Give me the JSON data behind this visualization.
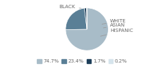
{
  "labels": [
    "BLACK",
    "WHITE",
    "ASIAN",
    "HISPANIC"
  ],
  "values": [
    74.7,
    23.4,
    1.7,
    0.2
  ],
  "colors": [
    "#a8bcc8",
    "#5a7f96",
    "#1e3f5a",
    "#d6e4ec"
  ],
  "legend_labels": [
    "74.7%",
    "23.4%",
    "1.7%",
    "0.2%"
  ],
  "legend_colors": [
    "#a8bcc8",
    "#5a7f96",
    "#1e3f5a",
    "#d6e4ec"
  ],
  "label_fontsize": 5.2,
  "legend_fontsize": 5.2,
  "background_color": "#ffffff",
  "text_color": "#666666",
  "line_color": "#999999"
}
